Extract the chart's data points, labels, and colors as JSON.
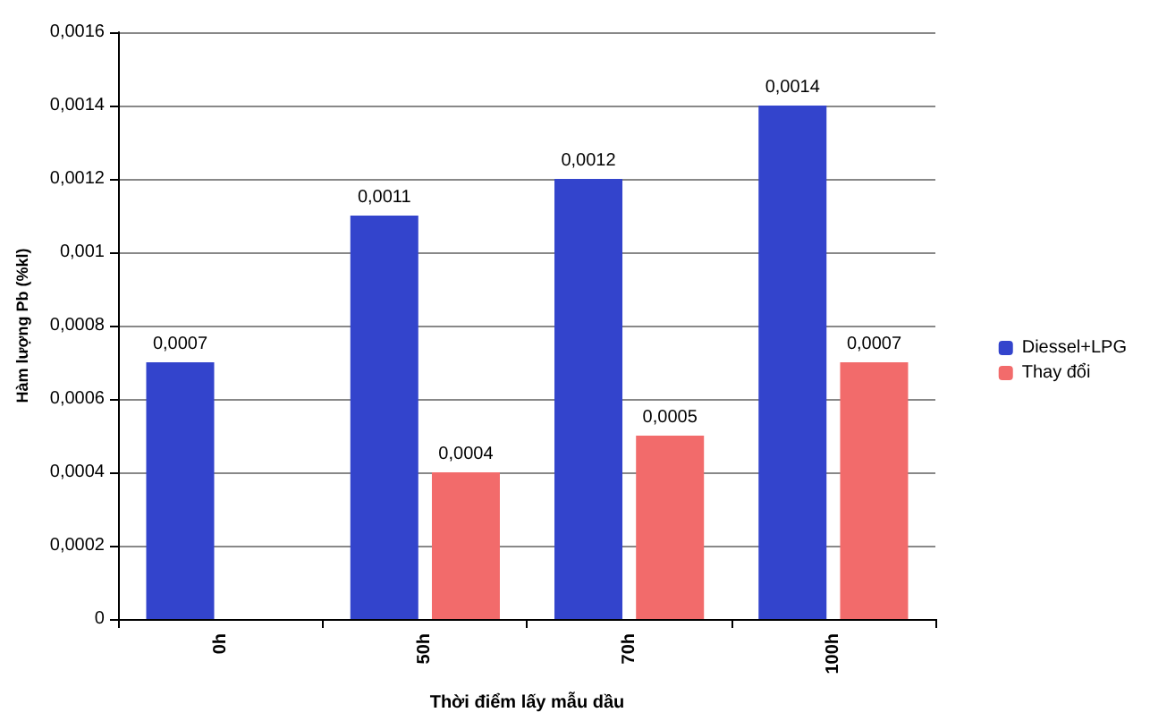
{
  "chart_data": {
    "type": "bar",
    "xlabel": "Thời điểm lấy mẫu dầu",
    "ylabel": "Hàm lượng Pb (%kl)",
    "categories": [
      "0h",
      "50h",
      "70h",
      "100h"
    ],
    "series": [
      {
        "name": "Diessel+LPG",
        "color": "#3344cc",
        "values": [
          0.0007,
          0.0011,
          0.0012,
          0.0014
        ],
        "value_labels": [
          "0,0007",
          "0,0011",
          "0,0012",
          "0,0014"
        ]
      },
      {
        "name": "Thay đổi",
        "color": "#f26b6b",
        "values": [
          null,
          0.0004,
          0.0005,
          0.0007
        ],
        "value_labels": [
          null,
          "0,0004",
          "0,0005",
          "0,0007"
        ]
      }
    ],
    "ylim": [
      0,
      0.0016
    ],
    "yticks": [
      {
        "value": 0,
        "label": "0"
      },
      {
        "value": 0.0002,
        "label": "0,0002"
      },
      {
        "value": 0.0004,
        "label": "0,0004"
      },
      {
        "value": 0.0006,
        "label": "0,0006"
      },
      {
        "value": 0.0008,
        "label": "0,0008"
      },
      {
        "value": 0.001,
        "label": "0,001"
      },
      {
        "value": 0.0012,
        "label": "0,0012"
      },
      {
        "value": 0.0014,
        "label": "0,0014"
      },
      {
        "value": 0.0016,
        "label": "0,0016"
      }
    ],
    "grid": "y",
    "legend": "right"
  }
}
